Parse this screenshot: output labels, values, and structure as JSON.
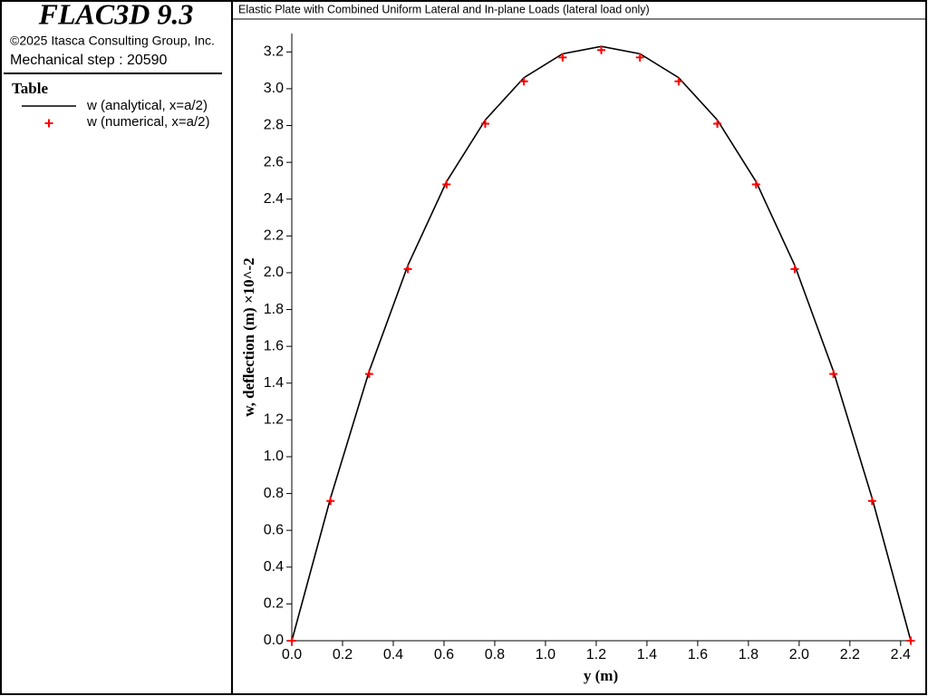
{
  "header": {
    "app_title": "FLAC3D 9.3",
    "copyright": "©2025 Itasca Consulting Group, Inc.",
    "step": "Mechanical step : 20590",
    "legend_title": "Table"
  },
  "chart_data": {
    "type": "line",
    "title": "Elastic Plate with Combined Uniform Lateral and In-plane Loads (lateral load only)",
    "x_label": "y (m)",
    "y_label": "w, deflection (m) ×10^-2",
    "x": [
      0,
      0.1525,
      0.305,
      0.4575,
      0.61,
      0.7625,
      0.915,
      1.0675,
      1.22,
      1.3725,
      1.525,
      1.6775,
      1.83,
      1.9825,
      2.135,
      2.2875,
      2.44
    ],
    "series": [
      {
        "name": "w (analytical, x=a/2)",
        "color": "#000000",
        "style": "line",
        "values": [
          0,
          0.775,
          1.465,
          2.04,
          2.495,
          2.83,
          3.06,
          3.19,
          3.23,
          3.19,
          3.06,
          2.83,
          2.495,
          2.04,
          1.465,
          0.775,
          0
        ]
      },
      {
        "name": "w (numerical, x=a/2)",
        "color": "#ff0000",
        "style": "plus",
        "values": [
          0,
          0.76,
          1.45,
          2.02,
          2.48,
          2.81,
          3.04,
          3.17,
          3.21,
          3.17,
          3.04,
          2.81,
          2.48,
          2.02,
          1.45,
          0.76,
          0
        ]
      }
    ],
    "xlim": [
      0,
      2.44
    ],
    "xticks": [
      {
        "value": 0,
        "label": "0.0"
      },
      0.2,
      0.4,
      0.6,
      0.8,
      {
        "value": 1,
        "label": "1.0"
      },
      1.2,
      1.4,
      1.6,
      1.8,
      {
        "value": 2,
        "label": "2.0"
      },
      2.2,
      2.4
    ],
    "ylim": [
      0,
      3.3
    ],
    "yticks": [
      {
        "value": 0,
        "label": "0.0"
      },
      0.2,
      0.4,
      0.6,
      0.8,
      {
        "value": 1,
        "label": "1.0"
      },
      1.2,
      1.4,
      1.6,
      1.8,
      {
        "value": 2,
        "label": "2.0"
      },
      2.2,
      2.4,
      2.6,
      2.8,
      {
        "value": 3,
        "label": "3.0"
      },
      3.2
    ],
    "grid": false
  }
}
